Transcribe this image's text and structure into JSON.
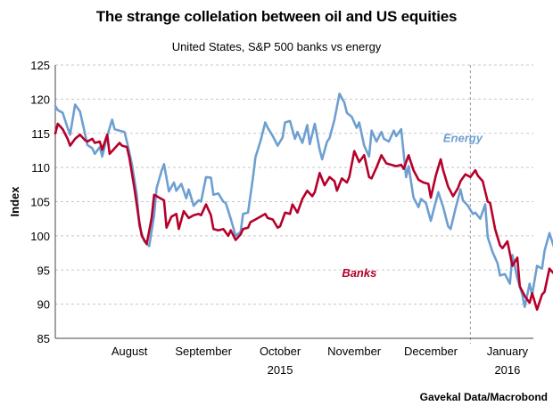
{
  "header": {
    "title": "The strange collelation between oil and US equities",
    "subtitle": "United States, S&P 500 banks vs energy"
  },
  "source": "Gavekal Data/Macrobond",
  "chart_data": {
    "type": "line",
    "title": "The strange collelation between oil and US equities",
    "subtitle": "United States, S&P 500 banks vs energy",
    "xlabel": "",
    "ylabel": "Index",
    "ylim": [
      85,
      125
    ],
    "yticks": [
      "85",
      "90",
      "95",
      "100",
      "105",
      "110",
      "115",
      "120",
      "125"
    ],
    "xlim": [
      "2015-07-17",
      "2016-01-27"
    ],
    "xticks": [
      {
        "label": "August",
        "x": "2015-08-16"
      },
      {
        "label": "September",
        "x": "2015-09-15"
      },
      {
        "label": "October",
        "x": "2015-10-16"
      },
      {
        "label": "November",
        "x": "2015-11-15"
      },
      {
        "label": "December",
        "x": "2015-12-16"
      },
      {
        "label": "January",
        "x": "2016-01-16"
      }
    ],
    "year_labels": [
      {
        "label": "2015",
        "x": "2015-10-16"
      },
      {
        "label": "2016",
        "x": "2016-01-16"
      }
    ],
    "year_divider": "2016-01-01",
    "grid": true,
    "colors": {
      "energy": "#6e9fd1",
      "banks": "#b5002a",
      "grid": "#c8c8c8",
      "axis": "#444444"
    },
    "series": [
      {
        "name": "Energy",
        "values": [
          [
            "2015-07-17",
            119.0
          ],
          [
            "2015-07-18",
            118.4
          ],
          [
            "2015-07-20",
            118.0
          ],
          [
            "2015-07-22",
            115.8
          ],
          [
            "2015-07-23",
            114.8
          ],
          [
            "2015-07-24",
            117.0
          ],
          [
            "2015-07-25",
            119.2
          ],
          [
            "2015-07-27",
            118.2
          ],
          [
            "2015-07-29",
            115.0
          ],
          [
            "2015-07-30",
            113.3
          ],
          [
            "2015-08-01",
            112.8
          ],
          [
            "2015-08-02",
            112.0
          ],
          [
            "2015-08-04",
            113.0
          ],
          [
            "2015-08-05",
            111.6
          ],
          [
            "2015-08-07",
            114.6
          ],
          [
            "2015-08-09",
            117.0
          ],
          [
            "2015-08-10",
            115.6
          ],
          [
            "2015-08-12",
            115.4
          ],
          [
            "2015-08-14",
            115.2
          ],
          [
            "2015-08-15",
            113.8
          ],
          [
            "2015-08-17",
            110.5
          ],
          [
            "2015-08-19",
            106.0
          ],
          [
            "2015-08-20",
            101.5
          ],
          [
            "2015-08-22",
            99.2
          ],
          [
            "2015-08-24",
            98.5
          ],
          [
            "2015-08-26",
            103.0
          ],
          [
            "2015-08-27",
            107.0
          ],
          [
            "2015-08-29",
            109.5
          ],
          [
            "2015-08-30",
            110.5
          ],
          [
            "2015-09-01",
            106.5
          ],
          [
            "2015-09-03",
            107.8
          ],
          [
            "2015-09-04",
            106.6
          ],
          [
            "2015-09-06",
            107.6
          ],
          [
            "2015-09-08",
            105.5
          ],
          [
            "2015-09-09",
            106.8
          ],
          [
            "2015-09-11",
            104.4
          ],
          [
            "2015-09-13",
            105.2
          ],
          [
            "2015-09-14",
            105.0
          ],
          [
            "2015-09-16",
            108.6
          ],
          [
            "2015-09-18",
            108.5
          ],
          [
            "2015-09-19",
            106.0
          ],
          [
            "2015-09-21",
            106.2
          ],
          [
            "2015-09-23",
            105.0
          ],
          [
            "2015-09-24",
            104.8
          ],
          [
            "2015-09-26",
            102.5
          ],
          [
            "2015-09-28",
            100.0
          ],
          [
            "2015-09-30",
            100.6
          ],
          [
            "2015-10-01",
            103.2
          ],
          [
            "2015-10-03",
            103.4
          ],
          [
            "2015-10-05",
            108.5
          ],
          [
            "2015-10-06",
            111.5
          ],
          [
            "2015-10-08",
            113.8
          ],
          [
            "2015-10-10",
            116.6
          ],
          [
            "2015-10-11",
            115.8
          ],
          [
            "2015-10-13",
            114.6
          ],
          [
            "2015-10-15",
            113.2
          ],
          [
            "2015-10-17",
            114.4
          ],
          [
            "2015-10-18",
            116.6
          ],
          [
            "2015-10-20",
            116.8
          ],
          [
            "2015-10-22",
            114.2
          ],
          [
            "2015-10-23",
            115.2
          ],
          [
            "2015-10-25",
            113.6
          ],
          [
            "2015-10-27",
            116.2
          ],
          [
            "2015-10-28",
            113.4
          ],
          [
            "2015-10-30",
            116.4
          ],
          [
            "2015-11-01",
            112.6
          ],
          [
            "2015-11-02",
            111.2
          ],
          [
            "2015-11-04",
            113.8
          ],
          [
            "2015-11-05",
            114.3
          ],
          [
            "2015-11-07",
            117.0
          ],
          [
            "2015-11-09",
            120.8
          ],
          [
            "2015-11-11",
            119.5
          ],
          [
            "2015-11-12",
            118.0
          ],
          [
            "2015-11-14",
            117.4
          ],
          [
            "2015-11-16",
            115.8
          ],
          [
            "2015-11-17",
            116.6
          ],
          [
            "2015-11-19",
            113.2
          ],
          [
            "2015-11-21",
            111.6
          ],
          [
            "2015-11-22",
            115.4
          ],
          [
            "2015-11-24",
            113.8
          ],
          [
            "2015-11-26",
            115.2
          ],
          [
            "2015-11-27",
            114.2
          ],
          [
            "2015-11-29",
            113.8
          ],
          [
            "2015-12-01",
            115.4
          ],
          [
            "2015-12-02",
            114.6
          ],
          [
            "2015-12-04",
            115.6
          ],
          [
            "2015-12-06",
            108.6
          ],
          [
            "2015-12-07",
            110.2
          ],
          [
            "2015-12-09",
            105.6
          ],
          [
            "2015-12-11",
            104.2
          ],
          [
            "2015-12-12",
            105.4
          ],
          [
            "2015-12-14",
            104.8
          ],
          [
            "2015-12-16",
            102.2
          ],
          [
            "2015-12-17",
            103.6
          ],
          [
            "2015-12-19",
            106.4
          ],
          [
            "2015-12-21",
            104.2
          ],
          [
            "2015-12-23",
            101.4
          ],
          [
            "2015-12-24",
            101.0
          ],
          [
            "2015-12-26",
            104.0
          ],
          [
            "2015-12-28",
            106.8
          ],
          [
            "2015-12-29",
            105.2
          ],
          [
            "2015-12-31",
            104.4
          ],
          [
            "2016-01-02",
            103.2
          ],
          [
            "2016-01-03",
            103.4
          ],
          [
            "2016-01-05",
            102.5
          ],
          [
            "2016-01-07",
            104.6
          ],
          [
            "2016-01-08",
            99.8
          ],
          [
            "2016-01-10",
            97.6
          ],
          [
            "2016-01-12",
            96.0
          ],
          [
            "2016-01-13",
            94.2
          ],
          [
            "2016-01-15",
            94.4
          ],
          [
            "2016-01-17",
            93.0
          ],
          [
            "2016-01-18",
            97.2
          ],
          [
            "2016-01-20",
            93.8
          ],
          [
            "2016-01-22",
            91.4
          ],
          [
            "2016-01-23",
            89.6
          ],
          [
            "2016-01-25",
            93.0
          ],
          [
            "2016-01-26",
            91.4
          ],
          [
            "2016-01-28",
            95.6
          ],
          [
            "2016-01-30",
            95.2
          ],
          [
            "2016-01-31",
            97.8
          ],
          [
            "2016-02-02",
            100.4
          ],
          [
            "2016-02-04",
            98.2
          ]
        ]
      },
      {
        "name": "Banks",
        "values": [
          [
            "2015-07-17",
            115.0
          ],
          [
            "2015-07-18",
            116.4
          ],
          [
            "2015-07-20",
            115.6
          ],
          [
            "2015-07-22",
            114.2
          ],
          [
            "2015-07-23",
            113.2
          ],
          [
            "2015-07-25",
            114.2
          ],
          [
            "2015-07-27",
            114.8
          ],
          [
            "2015-07-29",
            114.0
          ],
          [
            "2015-07-30",
            113.8
          ],
          [
            "2015-08-01",
            114.2
          ],
          [
            "2015-08-02",
            113.6
          ],
          [
            "2015-08-04",
            113.8
          ],
          [
            "2015-08-05",
            112.6
          ],
          [
            "2015-08-07",
            114.8
          ],
          [
            "2015-08-08",
            112.0
          ],
          [
            "2015-08-10",
            112.8
          ],
          [
            "2015-08-12",
            113.6
          ],
          [
            "2015-08-13",
            113.2
          ],
          [
            "2015-08-15",
            113.0
          ],
          [
            "2015-08-16",
            111.4
          ],
          [
            "2015-08-18",
            107.0
          ],
          [
            "2015-08-20",
            102.0
          ],
          [
            "2015-08-21",
            100.0
          ],
          [
            "2015-08-23",
            98.8
          ],
          [
            "2015-08-25",
            102.6
          ],
          [
            "2015-08-26",
            106.0
          ],
          [
            "2015-08-28",
            105.6
          ],
          [
            "2015-08-30",
            105.2
          ],
          [
            "2015-08-31",
            101.2
          ],
          [
            "2015-09-02",
            102.8
          ],
          [
            "2015-09-04",
            103.2
          ],
          [
            "2015-09-05",
            101.0
          ],
          [
            "2015-09-07",
            103.6
          ],
          [
            "2015-09-09",
            102.6
          ],
          [
            "2015-09-11",
            103.0
          ],
          [
            "2015-09-13",
            103.2
          ],
          [
            "2015-09-14",
            103.0
          ],
          [
            "2015-09-16",
            104.6
          ],
          [
            "2015-09-18",
            103.0
          ],
          [
            "2015-09-19",
            101.0
          ],
          [
            "2015-09-21",
            100.8
          ],
          [
            "2015-09-23",
            101.0
          ],
          [
            "2015-09-25",
            100.0
          ],
          [
            "2015-09-26",
            100.8
          ],
          [
            "2015-09-28",
            99.4
          ],
          [
            "2015-09-30",
            100.2
          ],
          [
            "2015-10-01",
            101.0
          ],
          [
            "2015-10-03",
            101.2
          ],
          [
            "2015-10-04",
            102.0
          ],
          [
            "2015-10-06",
            102.4
          ],
          [
            "2015-10-08",
            102.8
          ],
          [
            "2015-10-10",
            103.2
          ],
          [
            "2015-10-11",
            102.6
          ],
          [
            "2015-10-13",
            102.4
          ],
          [
            "2015-10-15",
            101.2
          ],
          [
            "2015-10-16",
            101.4
          ],
          [
            "2015-10-18",
            103.4
          ],
          [
            "2015-10-20",
            103.2
          ],
          [
            "2015-10-21",
            104.6
          ],
          [
            "2015-10-23",
            103.4
          ],
          [
            "2015-10-25",
            105.4
          ],
          [
            "2015-10-27",
            106.6
          ],
          [
            "2015-10-29",
            105.8
          ],
          [
            "2015-10-30",
            106.4
          ],
          [
            "2015-11-01",
            109.2
          ],
          [
            "2015-11-03",
            107.4
          ],
          [
            "2015-11-05",
            108.6
          ],
          [
            "2015-11-07",
            108.0
          ],
          [
            "2015-11-08",
            106.6
          ],
          [
            "2015-11-10",
            108.4
          ],
          [
            "2015-11-12",
            107.8
          ],
          [
            "2015-11-13",
            108.6
          ],
          [
            "2015-11-15",
            112.4
          ],
          [
            "2015-11-17",
            110.8
          ],
          [
            "2015-11-19",
            111.8
          ],
          [
            "2015-11-21",
            108.6
          ],
          [
            "2015-11-22",
            108.4
          ],
          [
            "2015-11-24",
            110.0
          ],
          [
            "2015-11-26",
            111.8
          ],
          [
            "2015-11-28",
            110.6
          ],
          [
            "2015-11-30",
            110.4
          ],
          [
            "2015-12-02",
            110.2
          ],
          [
            "2015-12-04",
            110.4
          ],
          [
            "2015-12-05",
            109.8
          ],
          [
            "2015-12-07",
            111.8
          ],
          [
            "2015-12-09",
            109.6
          ],
          [
            "2015-12-11",
            108.2
          ],
          [
            "2015-12-13",
            107.8
          ],
          [
            "2015-12-15",
            107.6
          ],
          [
            "2015-12-16",
            105.6
          ],
          [
            "2015-12-18",
            108.8
          ],
          [
            "2015-12-20",
            111.2
          ],
          [
            "2015-12-21",
            109.6
          ],
          [
            "2015-12-23",
            107.2
          ],
          [
            "2015-12-25",
            105.8
          ],
          [
            "2015-12-27",
            107.0
          ],
          [
            "2015-12-28",
            108.0
          ],
          [
            "2015-12-30",
            109.0
          ],
          [
            "2016-01-01",
            108.6
          ],
          [
            "2016-01-03",
            109.6
          ],
          [
            "2016-01-04",
            108.8
          ],
          [
            "2016-01-06",
            108.0
          ],
          [
            "2016-01-08",
            105.0
          ],
          [
            "2016-01-09",
            104.8
          ],
          [
            "2016-01-11",
            101.0
          ],
          [
            "2016-01-13",
            98.6
          ],
          [
            "2016-01-14",
            98.2
          ],
          [
            "2016-01-16",
            99.2
          ],
          [
            "2016-01-18",
            95.6
          ],
          [
            "2016-01-20",
            96.8
          ],
          [
            "2016-01-21",
            92.6
          ],
          [
            "2016-01-23",
            91.2
          ],
          [
            "2016-01-25",
            90.2
          ],
          [
            "2016-01-26",
            91.6
          ],
          [
            "2016-01-28",
            89.2
          ],
          [
            "2016-01-30",
            91.4
          ],
          [
            "2016-01-31",
            91.8
          ],
          [
            "2016-02-02",
            95.2
          ],
          [
            "2016-02-04",
            94.4
          ]
        ]
      }
    ]
  }
}
